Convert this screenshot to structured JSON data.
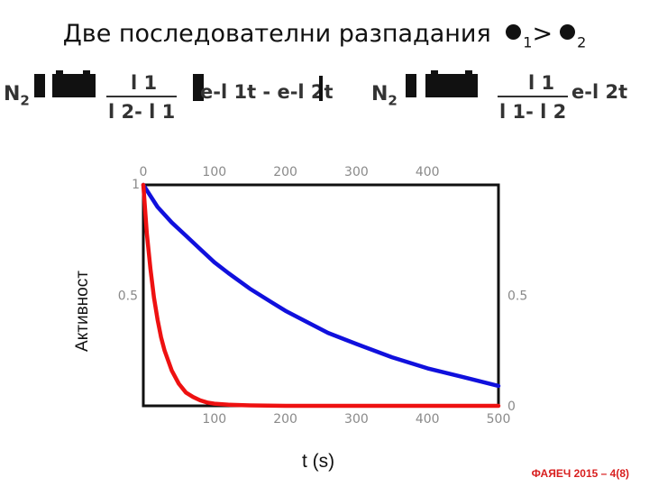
{
  "header": {
    "title_text": "Две последователни разпадания",
    "lambda_1_sub": "1",
    "compare": ">",
    "lambda_2_sub": "2"
  },
  "equations": {
    "left": {
      "n2_label": "N",
      "n2_sub": "2",
      "frac_num": "l 1",
      "frac_den": "l 2- l 1",
      "exp_text": "e-l 1t - e-l 2t"
    },
    "right": {
      "n2_label": "N",
      "n2_sub": "2",
      "frac_num": "l 1",
      "frac_den": "l 1- l 2",
      "exp_text": "e-l 2t"
    }
  },
  "axes": {
    "ylabel": "Активност",
    "xlabel": "t (s)"
  },
  "footer": {
    "text": "ФАЯЕЧ 2015 – 4(8)"
  },
  "chart_data": {
    "type": "line",
    "xlabel": "t (s)",
    "ylabel": "Активност",
    "xlim": [
      0,
      500
    ],
    "ylim": [
      0,
      1
    ],
    "top_ticks": [
      "0",
      "100",
      "200",
      "300",
      "400"
    ],
    "bottom_ticks": [
      "100",
      "200",
      "300",
      "400",
      "500"
    ],
    "left_ticks": [
      "1",
      "0.5"
    ],
    "right_ticks": [
      "0.5",
      "0"
    ],
    "series": [
      {
        "color": "#1010dd",
        "x": [
          0,
          20,
          40,
          60,
          80,
          100,
          120,
          150,
          180,
          200,
          230,
          260,
          300,
          350,
          400,
          450,
          500
        ],
        "y": [
          1.0,
          0.9,
          0.83,
          0.77,
          0.71,
          0.65,
          0.6,
          0.53,
          0.47,
          0.43,
          0.38,
          0.33,
          0.28,
          0.22,
          0.17,
          0.13,
          0.09
        ]
      },
      {
        "color": "#ee1111",
        "x": [
          0,
          5,
          10,
          15,
          20,
          25,
          30,
          40,
          50,
          60,
          70,
          80,
          90,
          100,
          120,
          150,
          200,
          300,
          400,
          500
        ],
        "y": [
          1.0,
          0.78,
          0.62,
          0.49,
          0.39,
          0.31,
          0.25,
          0.16,
          0.1,
          0.06,
          0.04,
          0.025,
          0.015,
          0.01,
          0.005,
          0.002,
          0.0,
          0.0,
          0.0,
          0.0
        ]
      }
    ]
  }
}
